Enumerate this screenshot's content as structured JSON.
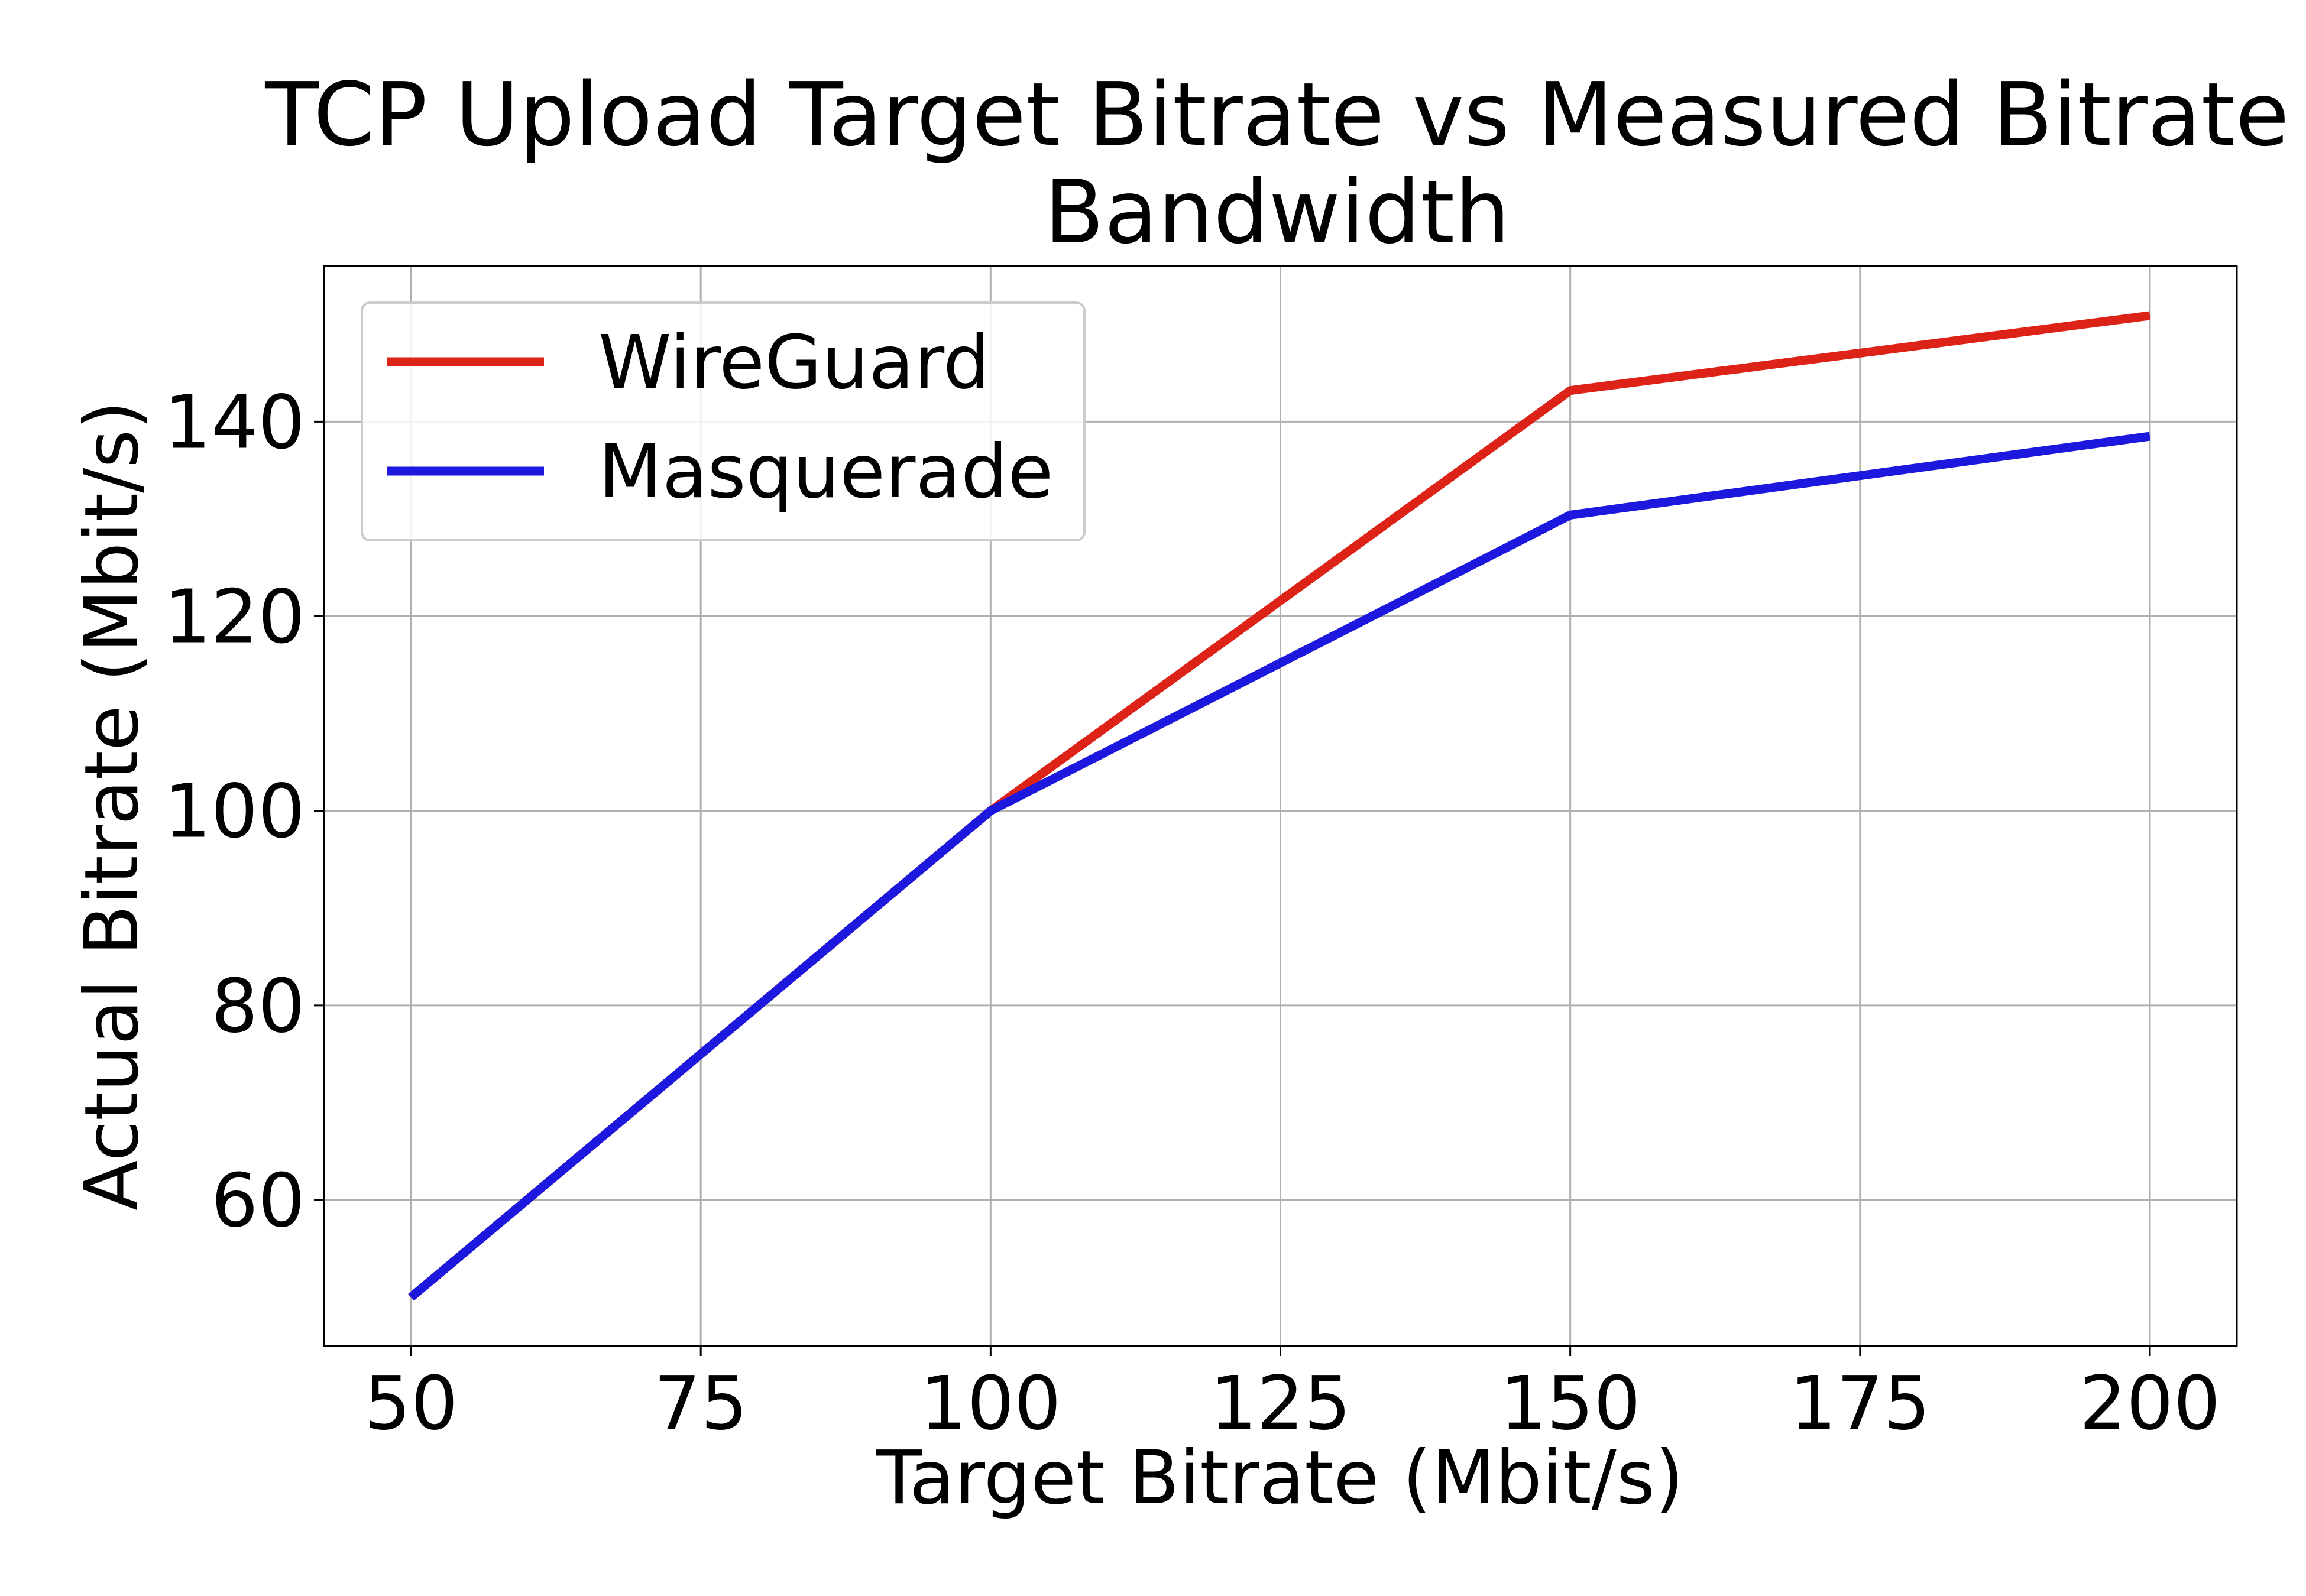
{
  "chart_data": {
    "type": "line",
    "title": [
      "TCP Upload Target Bitrate vs Measured Bitrate",
      "Bandwidth"
    ],
    "xlabel": "Target Bitrate (Mbit/s)",
    "ylabel": "Actual Bitrate (Mbit/s)",
    "xlim": [
      42.5,
      207.5
    ],
    "ylim": [
      45,
      156
    ],
    "xticks": [
      50,
      75,
      100,
      125,
      150,
      175,
      200
    ],
    "yticks": [
      60,
      80,
      100,
      120,
      140
    ],
    "grid": true,
    "legend_position": "top-left",
    "x": [
      50,
      100,
      150,
      200
    ],
    "series": [
      {
        "name": "WireGuard",
        "color": "#dd2218",
        "values": [
          50,
          100,
          143.2,
          150.9
        ]
      },
      {
        "name": "Masquerade",
        "color": "#1c18dd",
        "values": [
          50,
          100,
          130.4,
          138.5
        ]
      }
    ]
  }
}
